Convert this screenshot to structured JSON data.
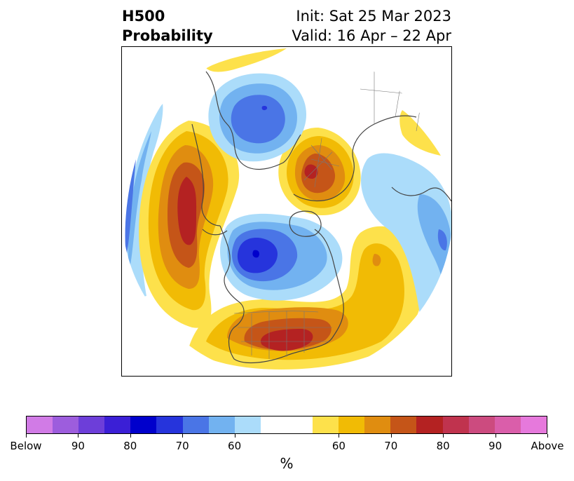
{
  "title": {
    "left_line1": "H500",
    "left_line2": "Probability",
    "right_line1": "Init: Sat 25 Mar 2023",
    "right_line2": "Valid: 16 Apr – 22 Apr"
  },
  "map": {
    "projection": "north-polar-stereographic",
    "colors": {
      "below_60": "#abdcfa",
      "below_65": "#72b2f0",
      "below_70": "#4a75e6",
      "below_75": "#2634dc",
      "below_80": "#0000cc",
      "above_60": "#fde14b",
      "above_65": "#f1bb05",
      "above_70": "#e08d10",
      "above_75": "#c55518",
      "above_80": "#b42222",
      "coastline": "#444444",
      "borders": "#666666"
    }
  },
  "colorbar": {
    "segments": [
      {
        "color": "#d17be6"
      },
      {
        "color": "#9d5ddd"
      },
      {
        "color": "#6d3ed9"
      },
      {
        "color": "#3b1fd6"
      },
      {
        "color": "#0000cc"
      },
      {
        "color": "#2634dc"
      },
      {
        "color": "#4a75e6"
      },
      {
        "color": "#72b2f0"
      },
      {
        "color": "#abdcfa"
      },
      {
        "color": "#ffffff"
      },
      {
        "color": "#ffffff"
      },
      {
        "color": "#fde14b"
      },
      {
        "color": "#f1bb05"
      },
      {
        "color": "#e08d10"
      },
      {
        "color": "#c55518"
      },
      {
        "color": "#b42222"
      },
      {
        "color": "#c0334e"
      },
      {
        "color": "#cc4b7f"
      },
      {
        "color": "#da5eaa"
      },
      {
        "color": "#e679dc"
      }
    ],
    "ticks": [
      {
        "label": "Below",
        "frac": 0.0
      },
      {
        "label": "90",
        "frac": 0.1
      },
      {
        "label": "80",
        "frac": 0.2
      },
      {
        "label": "70",
        "frac": 0.3
      },
      {
        "label": "60",
        "frac": 0.4
      },
      {
        "label": "60",
        "frac": 0.6
      },
      {
        "label": "70",
        "frac": 0.7
      },
      {
        "label": "80",
        "frac": 0.8
      },
      {
        "label": "90",
        "frac": 0.9
      },
      {
        "label": "Above",
        "frac": 1.0
      }
    ],
    "unit_label": "%"
  }
}
